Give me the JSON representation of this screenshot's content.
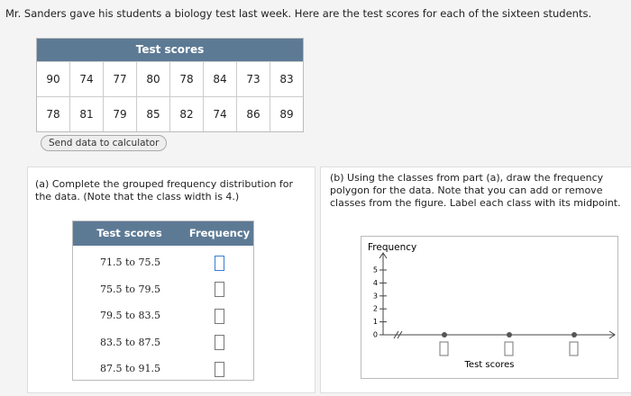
{
  "intro": "Mr. Sanders gave his students a biology test last week. Here are the test scores for each of the sixteen students.",
  "scores_table": {
    "title": "Test scores",
    "rows": [
      [
        90,
        74,
        77,
        80,
        78,
        84,
        73,
        83
      ],
      [
        78,
        81,
        79,
        85,
        82,
        74,
        86,
        89
      ]
    ]
  },
  "send_button": "Send data to calculator",
  "part_a": {
    "prompt": "(a) Complete the grouped frequency distribution for the data. (Note that the class width is 4.)",
    "headers": [
      "Test scores",
      "Frequency"
    ],
    "classes": [
      "71.5 to 75.5",
      "75.5 to 79.5",
      "79.5 to 83.5",
      "83.5 to 87.5",
      "87.5 to 91.5"
    ]
  },
  "part_b": {
    "prompt": "(b) Using the classes from part (a), draw the frequency polygon for the data. Note that you can add or remove classes from the figure. Label each class with its midpoint.",
    "y_label": "Frequency",
    "x_label": "Test scores",
    "yticks": [
      0,
      1,
      2,
      3,
      4,
      5
    ]
  }
}
